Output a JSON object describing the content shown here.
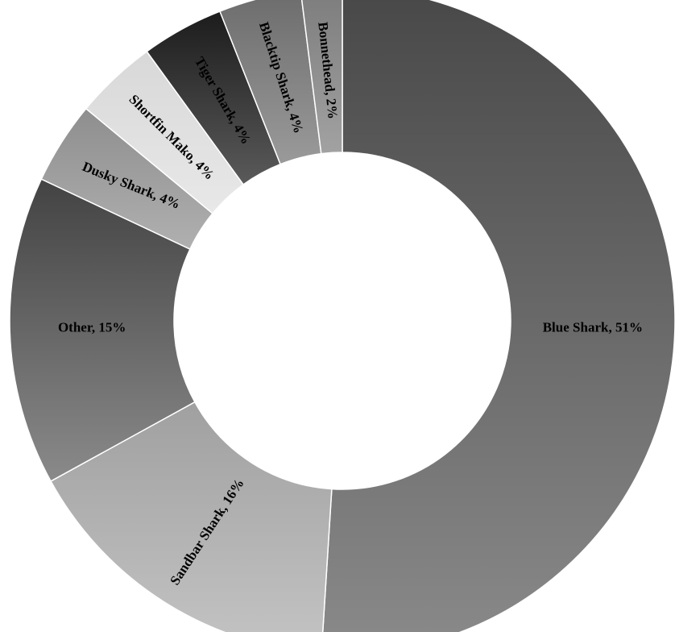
{
  "chart_data": {
    "type": "pie",
    "style": "donut",
    "start_angle_deg": 0,
    "direction": "clockwise",
    "slices": [
      {
        "name": "Blue Shark",
        "value": 51,
        "label": "Blue Shark, 51%",
        "color_top": "#484848",
        "color_bottom": "#8a8a8a",
        "label_rotation_deg": 0
      },
      {
        "name": "Sandbar Shark",
        "value": 16,
        "label": "Sandbar Shark, 16%",
        "color_top": "#a0a0a0",
        "color_bottom": "#c4c4c4",
        "label_rotation_deg": -57
      },
      {
        "name": "Other",
        "value": 15,
        "label": "Other, 15%",
        "color_top": "#434343",
        "color_bottom": "#8a8a8a",
        "label_rotation_deg": 0
      },
      {
        "name": "Dusky Shark",
        "value": 4,
        "label": "Dusky Shark, 4%",
        "color_top": "#8e8e8e",
        "color_bottom": "#b0b0b0",
        "label_rotation_deg": 22
      },
      {
        "name": "Shortfin Mako",
        "value": 4,
        "label": "Shortfin Mako, 4%",
        "color_top": "#d8d8d8",
        "color_bottom": "#e8e8e8",
        "label_rotation_deg": 45
      },
      {
        "name": "Tiger Shark",
        "value": 4,
        "label": "Tiger Shark, 4%",
        "color_top": "#1c1c1c",
        "color_bottom": "#5a5a5a",
        "label_rotation_deg": 60
      },
      {
        "name": "Blacktip Shark",
        "value": 4,
        "label": "Blacktip Shark, 4%",
        "color_top": "#6c6c6c",
        "color_bottom": "#9a9a9a",
        "label_rotation_deg": 72
      },
      {
        "name": "Bonnethead",
        "value": 2,
        "label": "Bonnethead, 2%",
        "color_top": "#7c7c7c",
        "color_bottom": "#a2a2a2",
        "label_rotation_deg": 84
      }
    ],
    "legend": "none",
    "title": ""
  }
}
